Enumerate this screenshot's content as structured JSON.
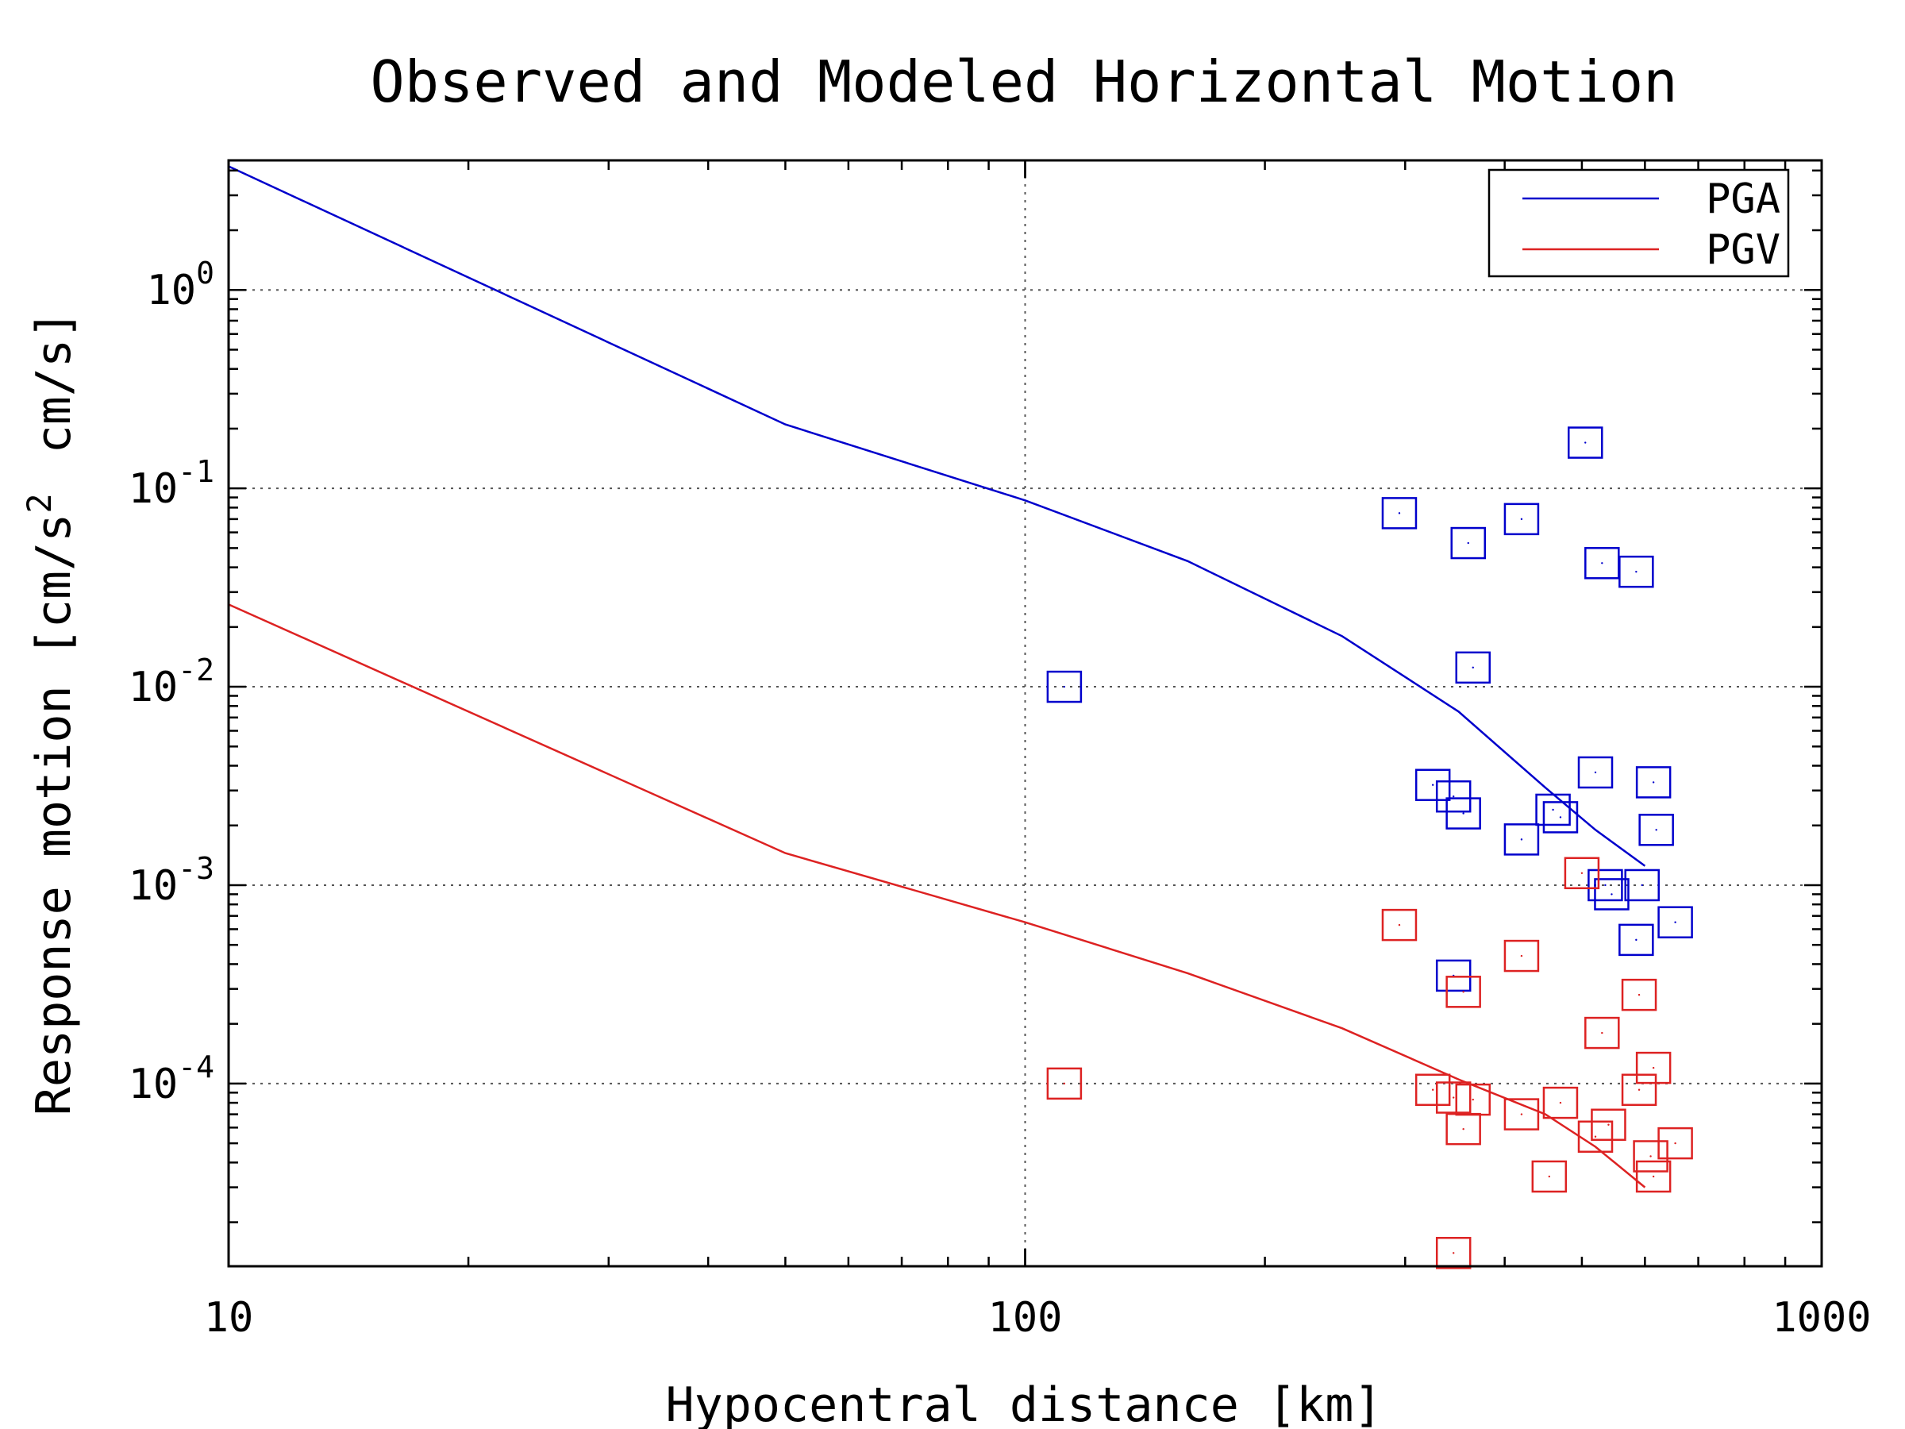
{
  "chart_data": {
    "type": "scatter",
    "title": "Observed and Modeled Horizontal Motion",
    "xlabel": "Hypocentral distance [km]",
    "ylabel": "Response motion [cm/s",
    "ylabel_sup": "2",
    "ylabel_end": "cm/s]",
    "x_scale": "log",
    "y_scale": "log",
    "xlim": [
      10,
      1000
    ],
    "ylim": [
      1.2e-05,
      4.5
    ],
    "x_ticks": [
      10,
      100,
      1000
    ],
    "x_tick_labels": [
      "10",
      "100",
      "1000"
    ],
    "y_ticks": [
      1,
      0.1,
      0.01,
      0.001,
      0.0001
    ],
    "y_tick_labels": [
      {
        "base": "10",
        "exp": "0"
      },
      {
        "base": "10",
        "exp": "-1"
      },
      {
        "base": "10",
        "exp": "-2"
      },
      {
        "base": "10",
        "exp": "-3"
      },
      {
        "base": "10",
        "exp": "-4"
      }
    ],
    "grid": true,
    "legend_position": "top-right",
    "series": [
      {
        "name": "PGA",
        "color": "#0000cc",
        "line": [
          [
            10,
            4.2
          ],
          [
            50,
            0.21
          ],
          [
            100,
            0.087
          ],
          [
            160,
            0.043
          ],
          [
            250,
            0.018
          ],
          [
            350,
            0.0075
          ],
          [
            450,
            0.0031
          ],
          [
            520,
            0.0019
          ],
          [
            600,
            0.00125
          ]
        ],
        "points": [
          [
            295,
            0.075
          ],
          [
            360,
            0.053
          ],
          [
            420,
            0.07
          ],
          [
            505,
            0.17
          ],
          [
            530,
            0.042
          ],
          [
            585,
            0.038
          ],
          [
            112,
            0.01
          ],
          [
            365,
            0.0125
          ],
          [
            325,
            0.0032
          ],
          [
            345,
            0.0028
          ],
          [
            355,
            0.0023
          ],
          [
            420,
            0.0017
          ],
          [
            460,
            0.0024
          ],
          [
            470,
            0.0022
          ],
          [
            520,
            0.0037
          ],
          [
            615,
            0.0033
          ],
          [
            620,
            0.0019
          ],
          [
            535,
            0.001
          ],
          [
            545,
            0.0009
          ],
          [
            595,
            0.001
          ],
          [
            585,
            0.00053
          ],
          [
            655,
            0.00065
          ],
          [
            345,
            0.00035
          ]
        ]
      },
      {
        "name": "PGV",
        "color": "#dd2222",
        "line": [
          [
            10,
            0.026
          ],
          [
            50,
            0.00145
          ],
          [
            100,
            0.00065
          ],
          [
            160,
            0.00036
          ],
          [
            250,
            0.00019
          ],
          [
            350,
            0.000105
          ],
          [
            450,
            7e-05
          ],
          [
            520,
            4.8e-05
          ],
          [
            600,
            3e-05
          ]
        ],
        "points": [
          [
            295,
            0.00063
          ],
          [
            420,
            0.00044
          ],
          [
            500,
            0.00115
          ],
          [
            530,
            0.00018
          ],
          [
            590,
            0.00028
          ],
          [
            355,
            0.00029
          ],
          [
            112,
            0.0001
          ],
          [
            325,
            9.3e-05
          ],
          [
            345,
            8.5e-05
          ],
          [
            365,
            8.3e-05
          ],
          [
            420,
            7e-05
          ],
          [
            455,
            3.4e-05
          ],
          [
            470,
            8e-05
          ],
          [
            520,
            5.4e-05
          ],
          [
            540,
            6.2e-05
          ],
          [
            590,
            9.3e-05
          ],
          [
            615,
            0.00012
          ],
          [
            610,
            4.3e-05
          ],
          [
            615,
            3.4e-05
          ],
          [
            655,
            5e-05
          ],
          [
            355,
            5.9e-05
          ],
          [
            345,
            1.4e-05
          ]
        ]
      }
    ]
  }
}
